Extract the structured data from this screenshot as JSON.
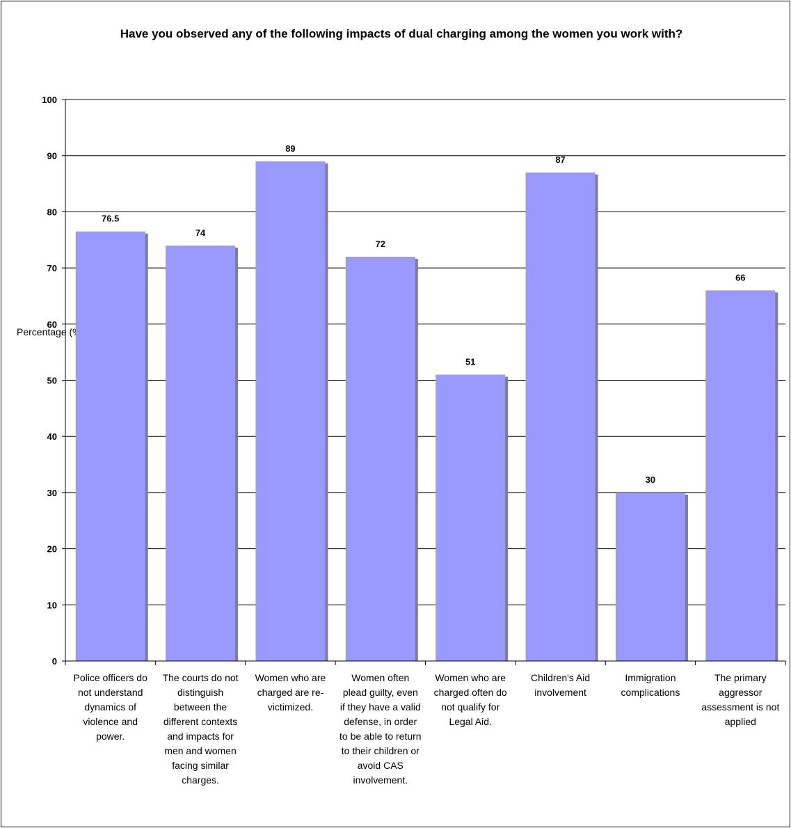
{
  "chart_data": {
    "type": "bar",
    "title": "Have you observed any of the following impacts of dual charging among the women you work with?",
    "ylabel": "Percentage (%)",
    "xlabel": "",
    "ylim": [
      0,
      100
    ],
    "yticks": [
      0,
      10,
      20,
      30,
      40,
      50,
      60,
      70,
      80,
      90,
      100
    ],
    "grid": true,
    "categories": [
      "Police officers do not understand dynamics of violence and power.",
      "The courts do not distinguish between the different contexts and impacts for men and women facing similar charges.",
      "Women who are charged are re-victimized.",
      "Women often plead guilty, even if they have a valid defense, in order to be able to return to their children or avoid CAS involvement.",
      "Women who are charged often do not qualify for Legal Aid.",
      "Children's Aid involvement",
      "Immigration complications",
      "The primary aggressor assessment is not applied"
    ],
    "values": [
      76.5,
      74,
      89,
      72,
      51,
      87,
      30,
      66
    ],
    "value_labels": [
      "76.5",
      "74",
      "89",
      "72",
      "51",
      "87",
      "30",
      "66"
    ],
    "colors": {
      "bar": "#9999ff",
      "shadow": "#808080",
      "grid": "#000000"
    }
  }
}
